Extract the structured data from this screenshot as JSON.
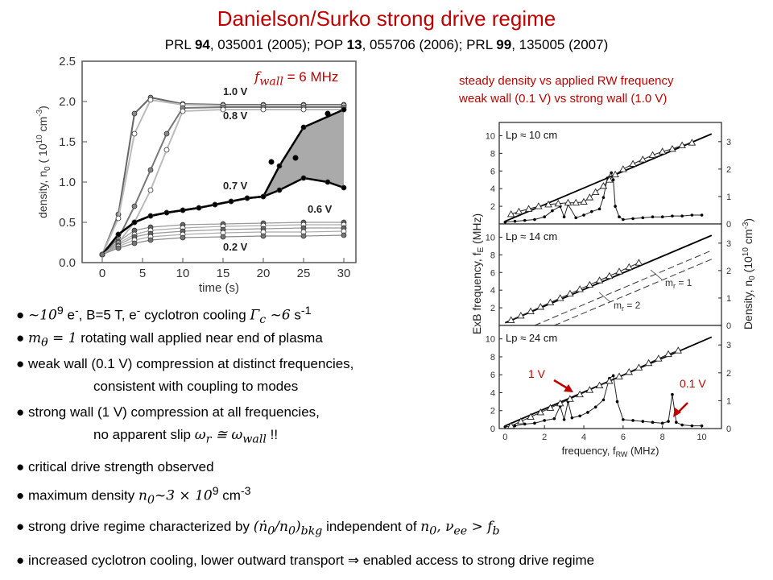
{
  "slide": {
    "title": "Danielson/Surko strong drive regime",
    "references": {
      "r1_journal": "PRL",
      "r1_vol": "94",
      "r1_rest": ", 035001 (2005); ",
      "r2_journal": "POP",
      "r2_vol": "13",
      "r2_rest": ", 055706 (2006); ",
      "r3_journal": "PRL",
      "r3_vol": "99",
      "r3_rest": ", 135005 (2007)"
    },
    "fwall_label": "f",
    "fwall_sub": "wall",
    "fwall_value": " = 6 MHz",
    "right_note_line1": "steady density vs applied RW frequency",
    "right_note_line2": "weak wall (0.1 V) vs strong wall (1.0 V)",
    "red_label_1v": "1 V",
    "red_label_01v": "0.1 V"
  },
  "bullets": {
    "b1_math": "~10",
    "b1_sup": "9",
    "b1_text": " e",
    "b1_text2": ", B=5 T, e",
    "b1_text3": " cyclotron cooling ",
    "b1_math2": "Γ",
    "b1_math2_sub": "c",
    "b1_math3": " ~6",
    "b1_text4": " s",
    "b1_sup2": "-1",
    "b2_math": "m",
    "b2_sub": "θ",
    "b2_math2": " = 1",
    "b2_text": " rotating wall applied near end of plasma",
    "b3_text": "weak wall (0.1 V) compression at distinct frequencies,",
    "b3_cont": "consistent with coupling to modes",
    "b4_text": "strong wall (1 V) compression at all frequencies,",
    "b4_cont": "no apparent slip ",
    "b4_math": "ω",
    "b4_sub": "r",
    "b4_math2": " ≅ ω",
    "b4_sub2": "wall",
    "b4_end": " !!",
    "b5_text": "critical drive strength observed",
    "b6_text": "maximum density ",
    "b6_math": "n",
    "b6_sub": "0",
    "b6_math2": "~3 × 10",
    "b6_sup": "9",
    "b6_text2": " cm",
    "b6_sup2": "-3",
    "b7_text": "strong drive regime characterized by ",
    "b7_math": "(ṅ",
    "b7_sub": "0",
    "b7_math2": "/n",
    "b7_sub2": "0",
    "b7_math3": ")",
    "b7_sub3": "bkg",
    "b7_text2": " independent of ",
    "b7_math4": "n",
    "b7_sub4": "0",
    "b7_math5": ", ν",
    "b7_sub5": "ee",
    "b7_math6": " > f",
    "b7_sub6": "b",
    "b8_text": "increased cyclotron cooling, lower outward transport ",
    "b8_arrow": "⇒",
    "b8_text2": " enabled access to strong drive regime"
  },
  "chart_data": [
    {
      "type": "line",
      "xlabel": "time (s)",
      "ylabel": "density, n",
      "ylabel_sub": "0",
      "ylabel_unit": " ( 10",
      "ylabel_sup": "10",
      "ylabel_unit2": " cm",
      "ylabel_sup2": "-3",
      "ylabel_close": ")",
      "xlim": [
        -2.5,
        31.5
      ],
      "ylim": [
        0,
        2.5
      ],
      "xticks": [
        "0",
        "5",
        "10",
        "15",
        "20",
        "25",
        "30"
      ],
      "xtick_values": [
        0,
        5,
        10,
        15,
        20,
        25,
        30
      ],
      "yticks": [
        "0.0",
        "0.5",
        "1.0",
        "1.5",
        "2.0",
        "2.5"
      ],
      "ytick_values": [
        0,
        0.5,
        1.0,
        1.5,
        2.0,
        2.5
      ],
      "annotations": [
        {
          "text": "1.0 V",
          "x": 15,
          "y": 2.08
        },
        {
          "text": "0.8 V",
          "x": 15,
          "y": 1.78
        },
        {
          "text": "0.7 V",
          "x": 15,
          "y": 0.91
        },
        {
          "text": "0.6 V",
          "x": 25.5,
          "y": 0.62
        },
        {
          "text": "0.2 V",
          "x": 15,
          "y": 0.15
        }
      ],
      "series": [
        {
          "label": "1.0 V",
          "x": [
            0,
            2,
            4,
            6,
            10,
            15,
            20,
            25,
            30
          ],
          "y": [
            0.1,
            0.6,
            1.85,
            2.05,
            1.97,
            1.96,
            1.96,
            1.96,
            1.96
          ]
        },
        {
          "label": "",
          "x": [
            0,
            2,
            4,
            6,
            10,
            15,
            20,
            25,
            30
          ],
          "y": [
            0.1,
            0.55,
            1.6,
            2.02,
            1.96,
            1.95,
            1.95,
            1.95,
            1.95
          ]
        },
        {
          "label": "0.8 V",
          "x": [
            0,
            2,
            4,
            6,
            8,
            10,
            15,
            20,
            25,
            30
          ],
          "y": [
            0.1,
            0.3,
            0.7,
            1.15,
            1.6,
            1.92,
            1.93,
            1.93,
            1.93,
            1.93
          ]
        },
        {
          "label": "",
          "x": [
            0,
            2,
            4,
            6,
            8,
            10,
            15,
            20,
            25,
            30
          ],
          "y": [
            0.1,
            0.25,
            0.5,
            0.9,
            1.4,
            1.88,
            1.9,
            1.9,
            1.9,
            1.9
          ]
        },
        {
          "label": "0.7 V",
          "x": [
            0,
            2,
            4,
            6,
            8,
            10,
            12,
            14,
            16,
            18,
            20,
            22,
            25,
            30
          ],
          "y": [
            0.1,
            0.35,
            0.5,
            0.58,
            0.62,
            0.65,
            0.68,
            0.72,
            0.76,
            0.8,
            0.82,
            1.2,
            1.68,
            1.9
          ]
        },
        {
          "label": "0.6 V",
          "x": [
            0,
            2,
            4,
            6,
            8,
            10,
            12,
            14,
            16,
            18,
            20,
            22,
            25,
            28,
            30
          ],
          "y": [
            0.1,
            0.35,
            0.5,
            0.58,
            0.62,
            0.65,
            0.68,
            0.72,
            0.76,
            0.8,
            0.82,
            0.9,
            1.05,
            1.0,
            0.93
          ]
        },
        {
          "label": "",
          "x": [
            0,
            2,
            4,
            6,
            10,
            15,
            20,
            25,
            30
          ],
          "y": [
            0.1,
            0.26,
            0.4,
            0.44,
            0.47,
            0.48,
            0.49,
            0.5,
            0.5
          ]
        },
        {
          "label": "",
          "x": [
            0,
            2,
            4,
            6,
            10,
            15,
            20,
            25,
            30
          ],
          "y": [
            0.1,
            0.24,
            0.35,
            0.4,
            0.43,
            0.45,
            0.46,
            0.47,
            0.47
          ]
        },
        {
          "label": "",
          "x": [
            0,
            2,
            4,
            6,
            10,
            15,
            20,
            25,
            30
          ],
          "y": [
            0.1,
            0.22,
            0.32,
            0.36,
            0.39,
            0.41,
            0.42,
            0.43,
            0.43
          ]
        },
        {
          "label": "",
          "x": [
            0,
            2,
            4,
            6,
            10,
            15,
            20,
            25,
            30
          ],
          "y": [
            0.1,
            0.2,
            0.28,
            0.32,
            0.35,
            0.37,
            0.38,
            0.38,
            0.39
          ]
        },
        {
          "label": "0.2 V",
          "x": [
            0,
            2,
            4,
            6,
            10,
            15,
            20,
            25,
            30
          ],
          "y": [
            0.1,
            0.18,
            0.24,
            0.28,
            0.31,
            0.32,
            0.33,
            0.33,
            0.34
          ]
        }
      ],
      "extra_points": [
        {
          "x": 24,
          "y": 1.3
        },
        {
          "x": 28,
          "y": 1.85
        },
        {
          "x": 21,
          "y": 1.25
        }
      ]
    },
    {
      "type": "line",
      "xlabel": "frequency, f",
      "xlabel_sub": "RW",
      "xlabel_unit": " (MHz)",
      "ylabel_left": "ExB frequency, f",
      "ylabel_left_sub": "E",
      "ylabel_left_unit": " (MHz)",
      "ylabel_right": "Density, n",
      "ylabel_right_sub": "0",
      "ylabel_right_unit": " (10",
      "ylabel_right_sup": "10",
      "ylabel_right_unit2": " cm",
      "ylabel_right_sup2": "-3",
      "ylabel_right_close": ")",
      "xlim": [
        -0.3,
        11
      ],
      "xticks": [
        "0",
        "2",
        "4",
        "6",
        "8",
        "10"
      ],
      "xtick_values": [
        0,
        2,
        4,
        6,
        8,
        10
      ],
      "panels": [
        {
          "label": "Lp ≈ 10 cm",
          "left_ticks": [
            "0",
            "2",
            "4",
            "6",
            "8",
            "10"
          ],
          "right_ticks": [
            "0",
            "1",
            "2",
            "3"
          ],
          "triangles": {
            "x": [
              0.3,
              0.7,
              1.2,
              1.7,
              2.2,
              2.7,
              3.2,
              3.6,
              4.0,
              4.3,
              4.6,
              5.0,
              5.3,
              5.6,
              6.0,
              6.5,
              7.0,
              7.5,
              8.0,
              8.5,
              9.0,
              9.5
            ],
            "y": [
              1.1,
              1.4,
              1.7,
              2.0,
              2.2,
              2.3,
              2.4,
              2.4,
              2.5,
              3.0,
              3.6,
              4.3,
              5.0,
              5.6,
              6.2,
              6.8,
              7.3,
              7.8,
              8.2,
              8.5,
              8.9,
              9.2
            ]
          },
          "dots": {
            "x": [
              0,
              0.5,
              1,
              1.5,
              2,
              2.4,
              2.8,
              3.0,
              3.2,
              3.6,
              4.0,
              4.4,
              4.8,
              5.0,
              5.2,
              5.4,
              5.5,
              5.6,
              5.8,
              6.0,
              6.5,
              7,
              7.5,
              8,
              8.5,
              9,
              9.5,
              10
            ],
            "y": [
              0.2,
              0.3,
              0.4,
              0.5,
              0.8,
              1.5,
              2.0,
              0.8,
              2.2,
              0.7,
              1.0,
              1.4,
              1.7,
              3.0,
              5.2,
              5.8,
              5.0,
              2.0,
              0.8,
              0.5,
              0.6,
              0.7,
              0.8,
              0.8,
              0.9,
              0.9,
              1.0,
              1.0
            ]
          },
          "line": {
            "x": [
              0,
              10.5
            ],
            "y": [
              0.3,
              10.2
            ]
          }
        },
        {
          "label": "Lp ≈ 14 cm",
          "left_ticks": [
            "0",
            "2",
            "4",
            "6",
            "8",
            "10"
          ],
          "right_ticks": [
            "0",
            "1",
            "2",
            "3"
          ],
          "triangles": {
            "x": [
              0.3,
              0.8,
              1.3,
              1.8,
              2.3,
              2.8,
              3.3,
              3.8,
              4.3,
              4.8,
              5.3,
              5.8,
              6.3,
              6.8
            ],
            "y": [
              0.6,
              1.1,
              1.6,
              2.1,
              2.6,
              3.1,
              3.6,
              4.1,
              4.6,
              5.1,
              5.6,
              6.1,
              6.6,
              7.1
            ]
          },
          "line": {
            "x": [
              0,
              10.5
            ],
            "y": [
              0.3,
              10.2
            ]
          },
          "dashed": [
            {
              "label": "m",
              "label_sub": "r",
              "label_rest": " = 1",
              "x": [
                1.5,
                10.5
              ],
              "y": [
                0,
                8.5
              ]
            },
            {
              "label": "m",
              "label_sub": "r",
              "label_rest": " = 2",
              "x": [
                2.5,
                10.5
              ],
              "y": [
                0,
                7.5
              ]
            }
          ]
        },
        {
          "label": "Lp ≈ 24 cm",
          "left_ticks": [
            "0",
            "2",
            "4",
            "6",
            "8",
            "10"
          ],
          "right_ticks": [
            "0",
            "1",
            "2",
            "3"
          ],
          "triangles": {
            "x": [
              0.3,
              0.8,
              1.3,
              1.8,
              2.3,
              2.8,
              3.3,
              3.8,
              4.3,
              4.8,
              5.3,
              5.8,
              6.3,
              6.8,
              7.3,
              7.8,
              8.3,
              8.8
            ],
            "y": [
              0.3,
              0.8,
              1.3,
              1.8,
              2.3,
              2.8,
              3.3,
              3.8,
              4.3,
              4.8,
              5.3,
              5.8,
              6.3,
              6.8,
              7.3,
              7.8,
              8.3,
              8.7
            ]
          },
          "dots": {
            "x": [
              0,
              0.5,
              1,
              1.5,
              2,
              2.5,
              2.8,
              3.0,
              3.2,
              3.4,
              3.8,
              4.2,
              4.6,
              5.0,
              5.3,
              5.5,
              5.7,
              6.0,
              6.5,
              7,
              7.5,
              8,
              8.3,
              8.5,
              8.7,
              9,
              9.5,
              10
            ],
            "y": [
              0.2,
              0.3,
              0.5,
              0.6,
              0.9,
              1.1,
              2.5,
              1.0,
              3.0,
              1.2,
              1.4,
              1.8,
              2.4,
              3.2,
              5.6,
              5.9,
              3.0,
              1.0,
              0.9,
              0.8,
              0.7,
              0.6,
              0.8,
              3.8,
              0.7,
              0.4,
              0.3,
              0.3
            ]
          },
          "line": {
            "x": [
              0,
              10.5
            ],
            "y": [
              0.3,
              10.2
            ]
          }
        }
      ]
    }
  ]
}
